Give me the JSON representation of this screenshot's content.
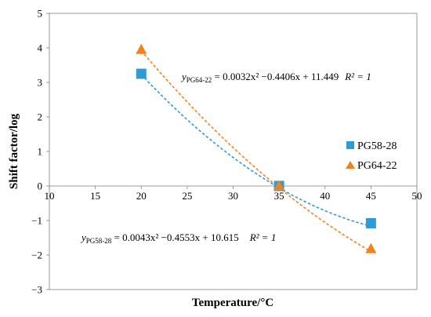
{
  "chart_data": {
    "type": "scatter",
    "xlabel": "Temperature/°C",
    "ylabel": "Shift factor/log",
    "xlim": [
      10,
      50
    ],
    "ylim": [
      -3,
      5
    ],
    "x_ticks": [
      10,
      15,
      20,
      25,
      30,
      35,
      40,
      45,
      50
    ],
    "y_ticks": [
      -3,
      -2,
      -1,
      0,
      1,
      2,
      3,
      4,
      5
    ],
    "x_tick_labels": [
      "10",
      "15",
      "20",
      "25",
      "30",
      "35",
      "40",
      "45",
      "50"
    ],
    "y_tick_labels": [
      "−3",
      "−2",
      "−1",
      "0",
      "1",
      "2",
      "3",
      "4",
      "5"
    ],
    "grid": false,
    "legend_position": "right",
    "series": [
      {
        "name": "PG58-28",
        "marker": "square",
        "color": "#2E9AD6",
        "x": [
          20,
          35,
          45
        ],
        "y": [
          3.25,
          0,
          -1.08
        ],
        "trendline": {
          "type": "polynomial",
          "a": 0.0043,
          "b": -0.4553,
          "c": 10.615
        }
      },
      {
        "name": "PG64-22",
        "marker": "triangle",
        "color": "#F0831F",
        "x": [
          20,
          35,
          45
        ],
        "y": [
          3.95,
          0,
          -1.82
        ],
        "trendline": {
          "type": "polynomial",
          "a": 0.0032,
          "b": -0.4406,
          "c": 11.449
        }
      }
    ],
    "annotations": [
      {
        "y_prefix": "y",
        "subscript": "PG64-22",
        "equation": " = 0.0032x² −0.4406x + 11.449",
        "r2": "R² = 1"
      },
      {
        "y_prefix": "y",
        "subscript": "PG58-28",
        "equation": " = 0.0043x² −0.4553x + 10.615",
        "r2": "R² = 1"
      }
    ]
  }
}
